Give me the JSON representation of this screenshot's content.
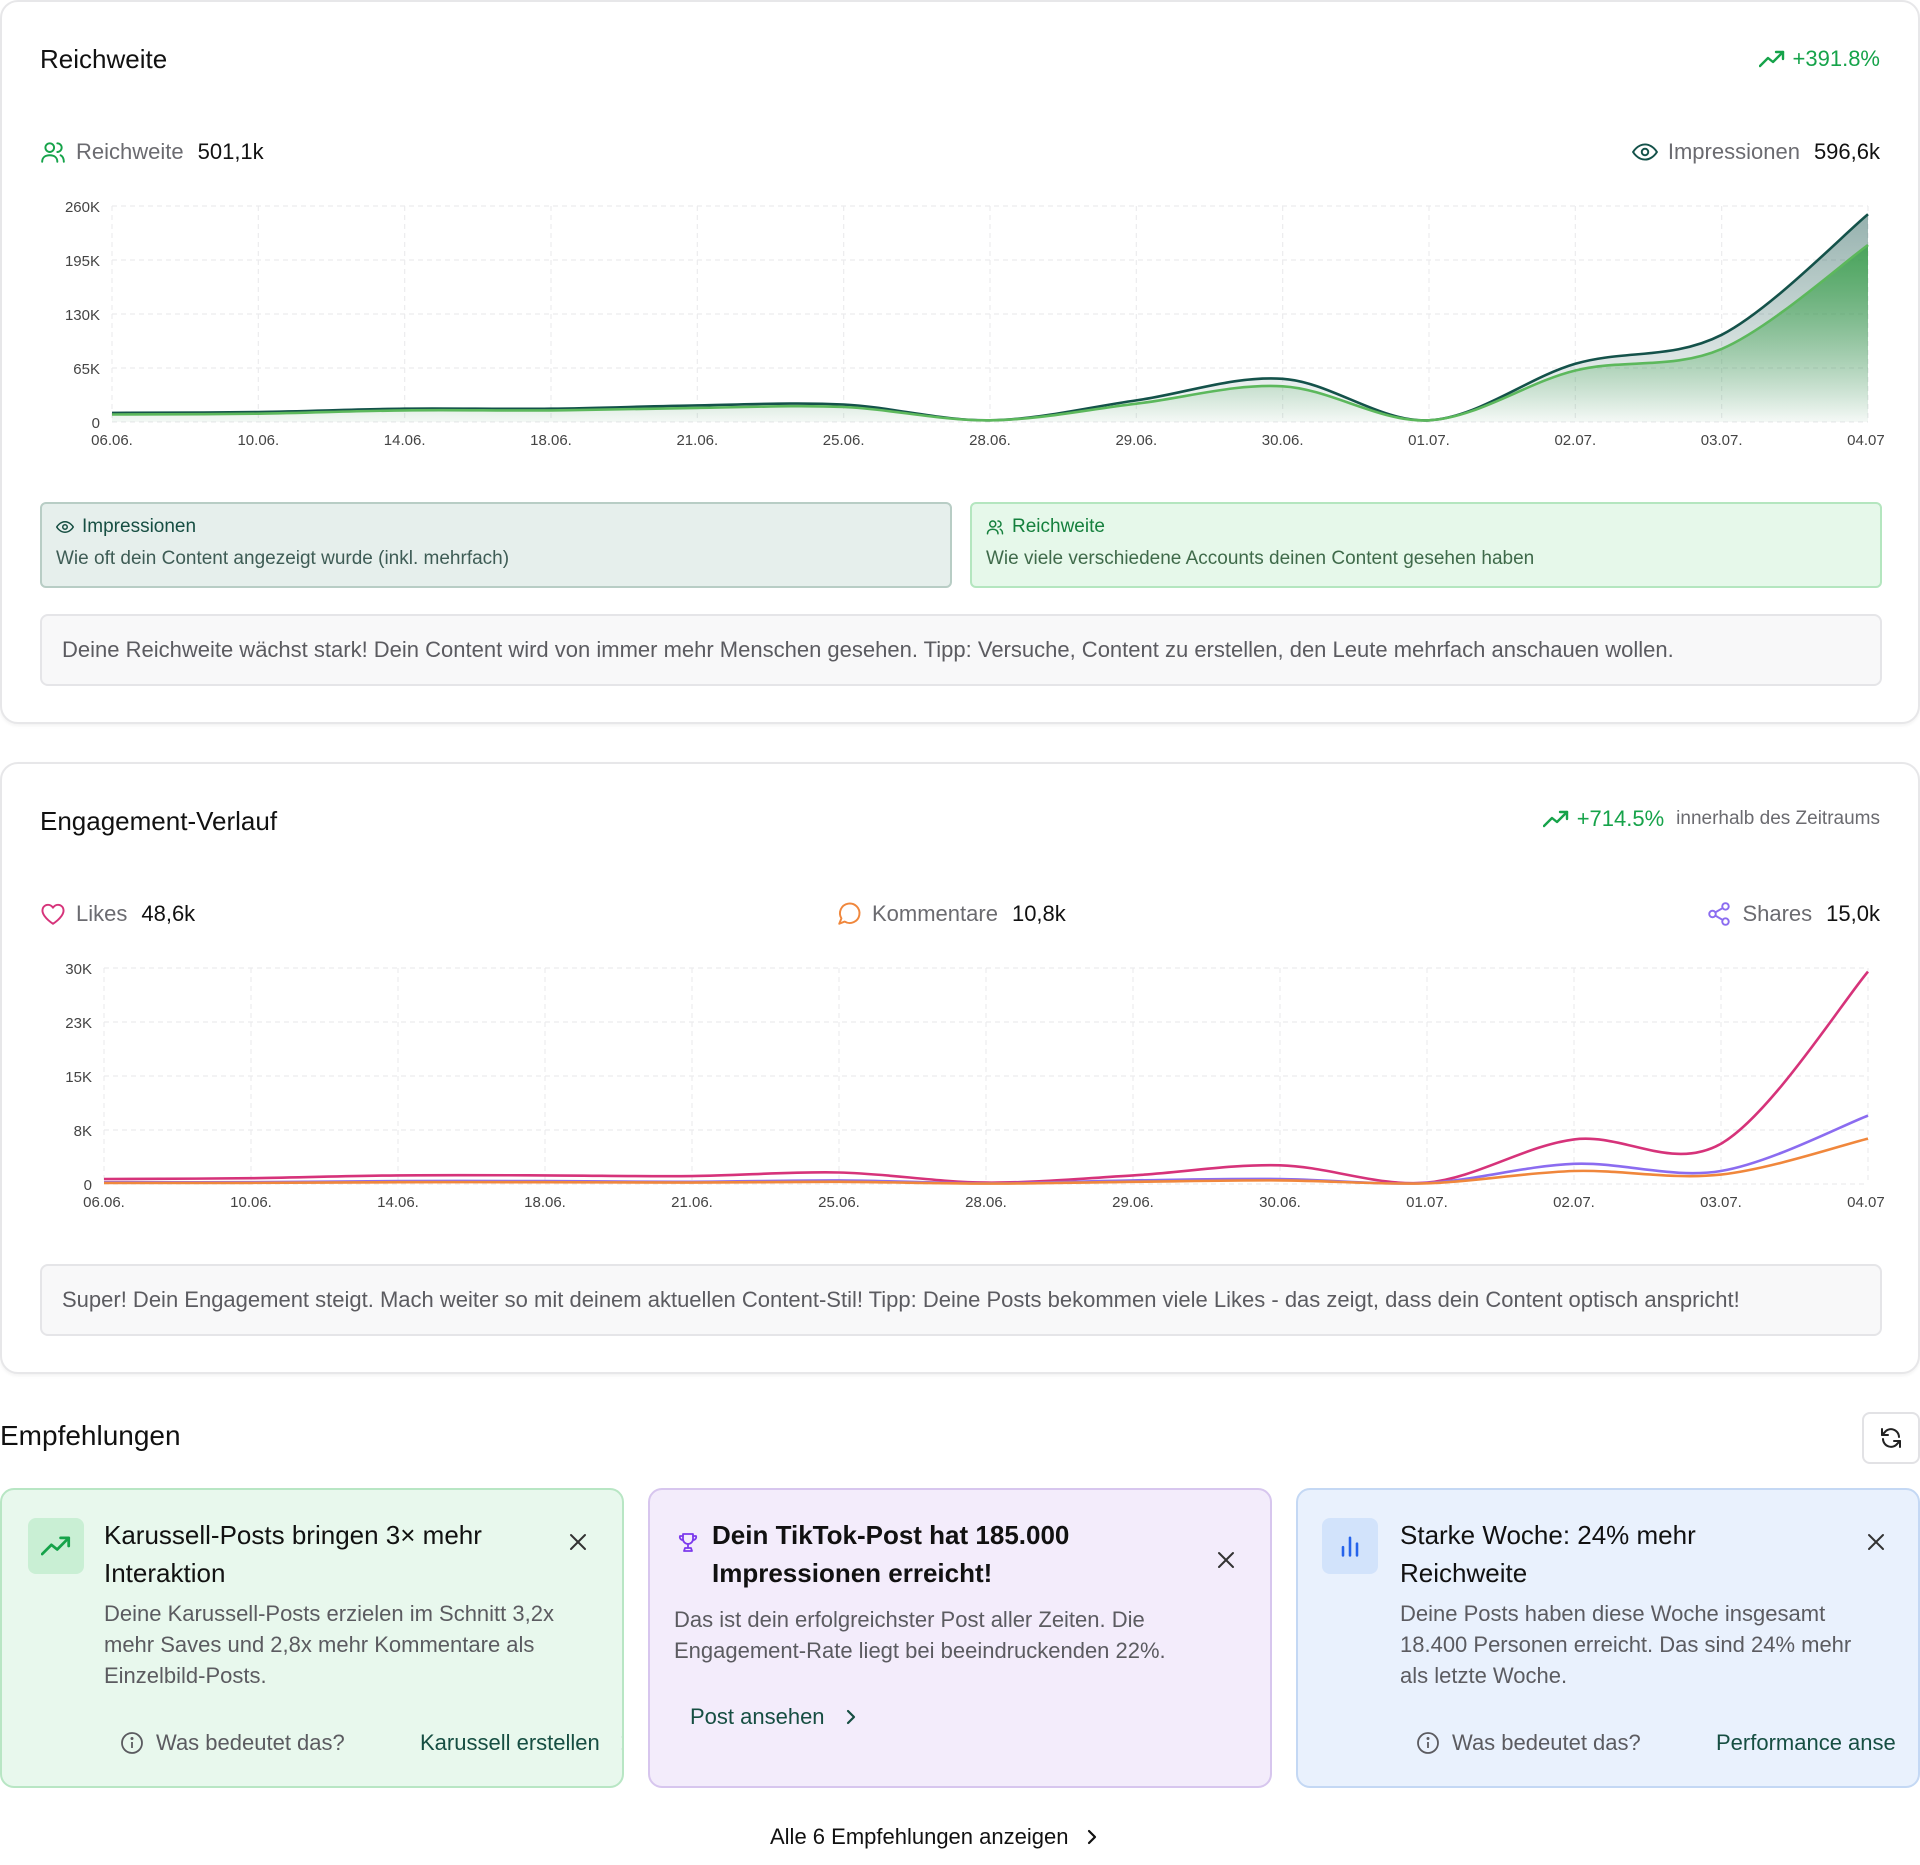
{
  "reach": {
    "title": "Reichweite",
    "trend": "+391.8%",
    "metrics": {
      "reach_label": "Reichweite",
      "reach_value": "501,1k",
      "impr_label": "Impressionen",
      "impr_value": "596,6k"
    },
    "legend": {
      "impr_title": "Impressionen",
      "impr_desc": "Wie oft dein Content angezeigt wurde (inkl. mehrfach)",
      "reach_title": "Reichweite",
      "reach_desc": "Wie viele verschiedene Accounts deinen Content gesehen haben"
    },
    "tip": "Deine Reichweite wächst stark! Dein Content wird von immer mehr Menschen gesehen. Tipp: Versuche, Content zu erstellen, den Leute mehrfach anschauen wollen."
  },
  "engagement": {
    "title": "Engagement-Verlauf",
    "trend": "+714.5%",
    "trend_suffix": "innerhalb des Zeitraums",
    "metrics": {
      "likes_label": "Likes",
      "likes_value": "48,6k",
      "comments_label": "Kommentare",
      "comments_value": "10,8k",
      "shares_label": "Shares",
      "shares_value": "15,0k"
    },
    "tip": "Super! Dein Engagement steigt. Mach weiter so mit deinem aktuellen Content-Stil! Tipp: Deine Posts bekommen viele Likes - das zeigt, dass dein Content optisch anspricht!"
  },
  "recommendations": {
    "title": "Empfehlungen",
    "items": [
      {
        "icon": "trending-up-icon",
        "title_l1": "Karussell-Posts bringen 3× mehr",
        "title_l2": "Interaktion",
        "desc_l1": "Deine Karussell-Posts erzielen im Schnitt 3,2x",
        "desc_l2": "mehr Saves und 2,8x mehr Kommentare als",
        "desc_l3": "Einzelbild-Posts.",
        "help": "Was bedeutet das?",
        "action": "Karussell erstellen"
      },
      {
        "icon": "trophy-icon",
        "title_l1": "Dein TikTok-Post hat 185.000",
        "title_l2": "Impressionen erreicht!",
        "desc_l1": "Das ist dein erfolgreichster Post aller Zeiten. Die",
        "desc_l2": "Engagement-Rate liegt bei beeindruckenden 22%.",
        "action": "Post ansehen"
      },
      {
        "icon": "bar-chart-icon",
        "title_l1": "Starke Woche: 24% mehr",
        "title_l2": "Reichweite",
        "desc_l1": "Deine Posts haben diese Woche insgesamt",
        "desc_l2": "18.400 Personen erreicht. Das sind 24% mehr",
        "desc_l3": "als letzte Woche.",
        "help": "Was bedeutet das?",
        "action": "Performance anse"
      }
    ],
    "show_all": "Alle 6 Empfehlungen anzeigen"
  },
  "chart_data": [
    {
      "type": "area",
      "categories": [
        "06.06.",
        "10.06.",
        "14.06.",
        "18.06.",
        "21.06.",
        "25.06.",
        "28.06.",
        "29.06.",
        "30.06.",
        "01.07.",
        "02.07.",
        "03.07.",
        "04.07."
      ],
      "yticks": [
        "260K",
        "195K",
        "130K",
        "65K",
        "0"
      ],
      "ylim": [
        0,
        260000
      ],
      "series": [
        {
          "name": "Impressionen",
          "color": "#14524a",
          "values": [
            11000,
            12000,
            16000,
            16000,
            20000,
            21000,
            2000,
            26000,
            52000,
            2000,
            70000,
            105000,
            250000
          ]
        },
        {
          "name": "Reichweite",
          "color": "#5cb85c",
          "values": [
            9000,
            10000,
            14000,
            14000,
            17000,
            18000,
            2000,
            22000,
            43000,
            2000,
            62000,
            88000,
            213000
          ]
        }
      ],
      "grid": true
    },
    {
      "type": "line",
      "categories": [
        "06.06.",
        "10.06.",
        "14.06.",
        "18.06.",
        "21.06.",
        "25.06.",
        "28.06.",
        "29.06.",
        "30.06.",
        "01.07.",
        "02.07.",
        "03.07.",
        "04.07."
      ],
      "yticks": [
        "30K",
        "23K",
        "15K",
        "8K",
        "0"
      ],
      "ylim": [
        0,
        30000
      ],
      "series": [
        {
          "name": "Likes",
          "color": "#d6337a",
          "values": [
            700,
            800,
            1200,
            1200,
            1100,
            1600,
            200,
            1200,
            2600,
            200,
            6200,
            5600,
            29500
          ]
        },
        {
          "name": "Shares",
          "color": "#8b6cf0",
          "values": [
            250,
            250,
            400,
            400,
            300,
            500,
            100,
            500,
            700,
            150,
            2800,
            1800,
            9500
          ]
        },
        {
          "name": "Kommentare",
          "color": "#f0873c",
          "values": [
            150,
            150,
            250,
            250,
            200,
            300,
            50,
            300,
            500,
            100,
            1800,
            1300,
            6300
          ]
        }
      ],
      "grid": true
    }
  ]
}
